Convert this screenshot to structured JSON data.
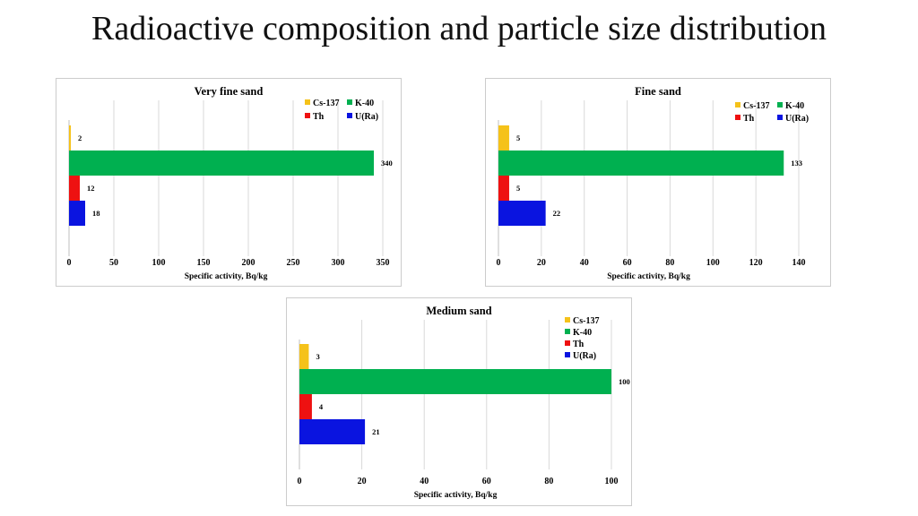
{
  "slide": {
    "title": "Radioactive composition and particle size distribution"
  },
  "colors": {
    "Cs-137": "#f5c21a",
    "K-40": "#00b050",
    "Th": "#ee1111",
    "U(Ra)": "#0a14e0"
  },
  "chart_data": [
    {
      "type": "bar",
      "orientation": "horizontal",
      "title": "Very fine sand",
      "xlabel": "Specific activity, Bq/kg",
      "xlim": [
        0,
        350
      ],
      "xticks": [
        0,
        50,
        100,
        150,
        200,
        250,
        300,
        350
      ],
      "legend_position": "top-right",
      "legend_columns": 2,
      "grid": true,
      "series": [
        {
          "name": "Cs-137",
          "value": 2,
          "label": "2"
        },
        {
          "name": "K-40",
          "value": 340,
          "label": "340"
        },
        {
          "name": "Th",
          "value": 12,
          "label": "12"
        },
        {
          "name": "U(Ra)",
          "value": 18,
          "label": "18"
        }
      ]
    },
    {
      "type": "bar",
      "orientation": "horizontal",
      "title": "Fine sand",
      "xlabel": "Specific activity, Bq/kg",
      "xlim": [
        0,
        140
      ],
      "xticks": [
        0,
        20,
        40,
        60,
        80,
        100,
        120,
        140
      ],
      "legend_position": "top-right",
      "legend_columns": 2,
      "grid": true,
      "series": [
        {
          "name": "Cs-137",
          "value": 5,
          "label": "5"
        },
        {
          "name": "K-40",
          "value": 133,
          "label": "133"
        },
        {
          "name": "Th",
          "value": 5,
          "label": "5"
        },
        {
          "name": "U(Ra)",
          "value": 22,
          "label": "22"
        }
      ]
    },
    {
      "type": "bar",
      "orientation": "horizontal",
      "title": "Medium sand",
      "xlabel": "Specific activity, Bq/kg",
      "xlim": [
        0,
        100
      ],
      "xticks": [
        0,
        20,
        40,
        60,
        80,
        100
      ],
      "legend_position": "top-right",
      "legend_columns": 1,
      "grid": true,
      "series": [
        {
          "name": "Cs-137",
          "value": 3,
          "label": "3"
        },
        {
          "name": "K-40",
          "value": 100,
          "label": "100"
        },
        {
          "name": "Th",
          "value": 4,
          "label": "4"
        },
        {
          "name": "U(Ra)",
          "value": 21,
          "label": "21"
        }
      ]
    }
  ]
}
